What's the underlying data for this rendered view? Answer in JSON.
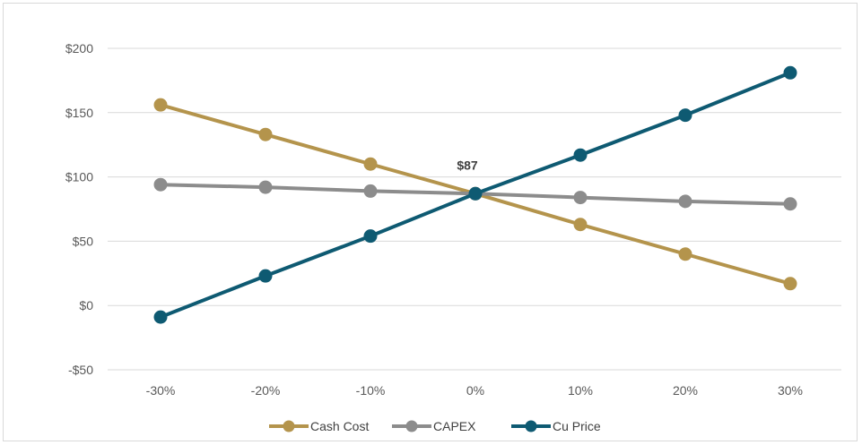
{
  "chart_data": {
    "type": "line",
    "categories": [
      "-30%",
      "-20%",
      "-10%",
      "0%",
      "10%",
      "20%",
      "30%"
    ],
    "series": [
      {
        "name": "Cash Cost",
        "color": "#b4944c",
        "values": [
          156,
          133,
          110,
          87,
          63,
          40,
          17
        ]
      },
      {
        "name": "CAPEX",
        "color": "#8c8c8c",
        "values": [
          94,
          92,
          89,
          87,
          84,
          81,
          79
        ]
      },
      {
        "name": "Cu Price",
        "color": "#0e5a72",
        "values": [
          -9,
          23,
          54,
          87,
          117,
          148,
          181
        ]
      }
    ],
    "y_ticks": [
      -50,
      0,
      50,
      100,
      150,
      200
    ],
    "y_tick_labels": [
      "-$50",
      "$0",
      "$50",
      "$100",
      "$150",
      "$200"
    ],
    "ylim": [
      -50,
      200
    ],
    "grid": true,
    "legend": "bottom",
    "annotation": {
      "text": "$87",
      "x": "0%",
      "y": 87
    }
  }
}
